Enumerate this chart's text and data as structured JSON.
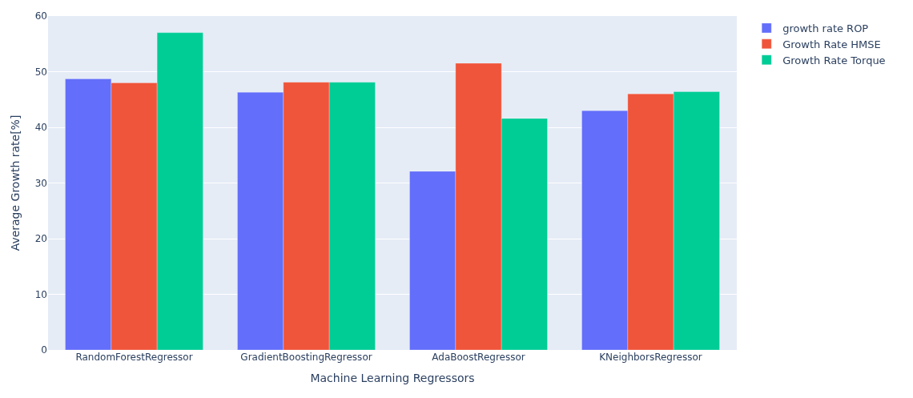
{
  "chart_data": {
    "type": "bar",
    "xlabel": "Machine Learning Regressors",
    "ylabel": "Average Growth rate[%]",
    "categories": [
      "RandomForestRegressor",
      "GradientBoostingRegressor",
      "AdaBoostRegressor",
      "KNeighborsRegressor"
    ],
    "series": [
      {
        "name": "growth rate ROP",
        "color": "#636efa",
        "values": [
          48.7,
          46.3,
          32.1,
          43.0
        ]
      },
      {
        "name": "Growth Rate HMSE",
        "color": "#ef553b",
        "values": [
          48.0,
          48.1,
          51.5,
          46.0
        ]
      },
      {
        "name": "Growth Rate Torque",
        "color": "#00cc96",
        "values": [
          57.0,
          48.1,
          41.6,
          46.4
        ]
      }
    ],
    "ylim": [
      0,
      60
    ],
    "yticks": [
      0,
      10,
      20,
      30,
      40,
      50,
      60
    ],
    "grid": "y",
    "legend": "top right"
  }
}
